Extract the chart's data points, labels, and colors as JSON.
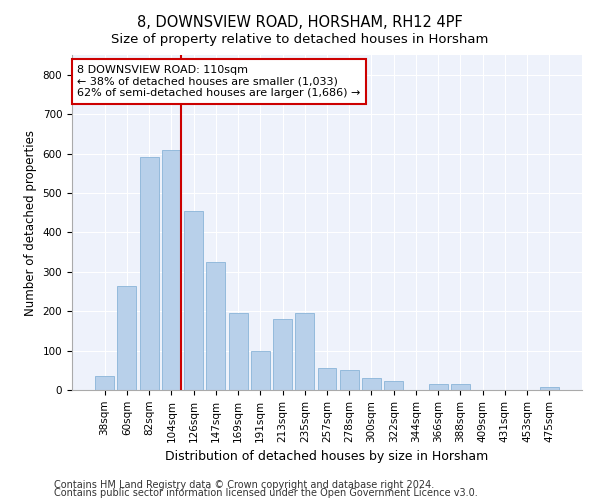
{
  "title": "8, DOWNSVIEW ROAD, HORSHAM, RH12 4PF",
  "subtitle": "Size of property relative to detached houses in Horsham",
  "xlabel": "Distribution of detached houses by size in Horsham",
  "ylabel": "Number of detached properties",
  "categories": [
    "38sqm",
    "60sqm",
    "82sqm",
    "104sqm",
    "126sqm",
    "147sqm",
    "169sqm",
    "191sqm",
    "213sqm",
    "235sqm",
    "257sqm",
    "278sqm",
    "300sqm",
    "322sqm",
    "344sqm",
    "366sqm",
    "388sqm",
    "409sqm",
    "431sqm",
    "453sqm",
    "475sqm"
  ],
  "values": [
    35,
    265,
    590,
    610,
    455,
    325,
    195,
    100,
    180,
    195,
    55,
    50,
    30,
    22,
    0,
    15,
    15,
    0,
    0,
    0,
    8
  ],
  "bar_color": "#b8d0ea",
  "bar_edge_color": "#8ab4d8",
  "vline_x": 3.42,
  "property_line_label": "8 DOWNSVIEW ROAD: 110sqm",
  "annotation_line1": "← 38% of detached houses are smaller (1,033)",
  "annotation_line2": "62% of semi-detached houses are larger (1,686) →",
  "annotation_box_facecolor": "#ffffff",
  "annotation_box_edgecolor": "#cc0000",
  "vline_color": "#cc0000",
  "ylim": [
    0,
    850
  ],
  "yticks": [
    0,
    100,
    200,
    300,
    400,
    500,
    600,
    700,
    800
  ],
  "background_color": "#eef2fb",
  "grid_color": "#ffffff",
  "footnote1": "Contains HM Land Registry data © Crown copyright and database right 2024.",
  "footnote2": "Contains public sector information licensed under the Open Government Licence v3.0.",
  "title_fontsize": 10.5,
  "subtitle_fontsize": 9.5,
  "ylabel_fontsize": 8.5,
  "xlabel_fontsize": 9,
  "tick_fontsize": 7.5,
  "annotation_fontsize": 8,
  "footnote_fontsize": 7
}
